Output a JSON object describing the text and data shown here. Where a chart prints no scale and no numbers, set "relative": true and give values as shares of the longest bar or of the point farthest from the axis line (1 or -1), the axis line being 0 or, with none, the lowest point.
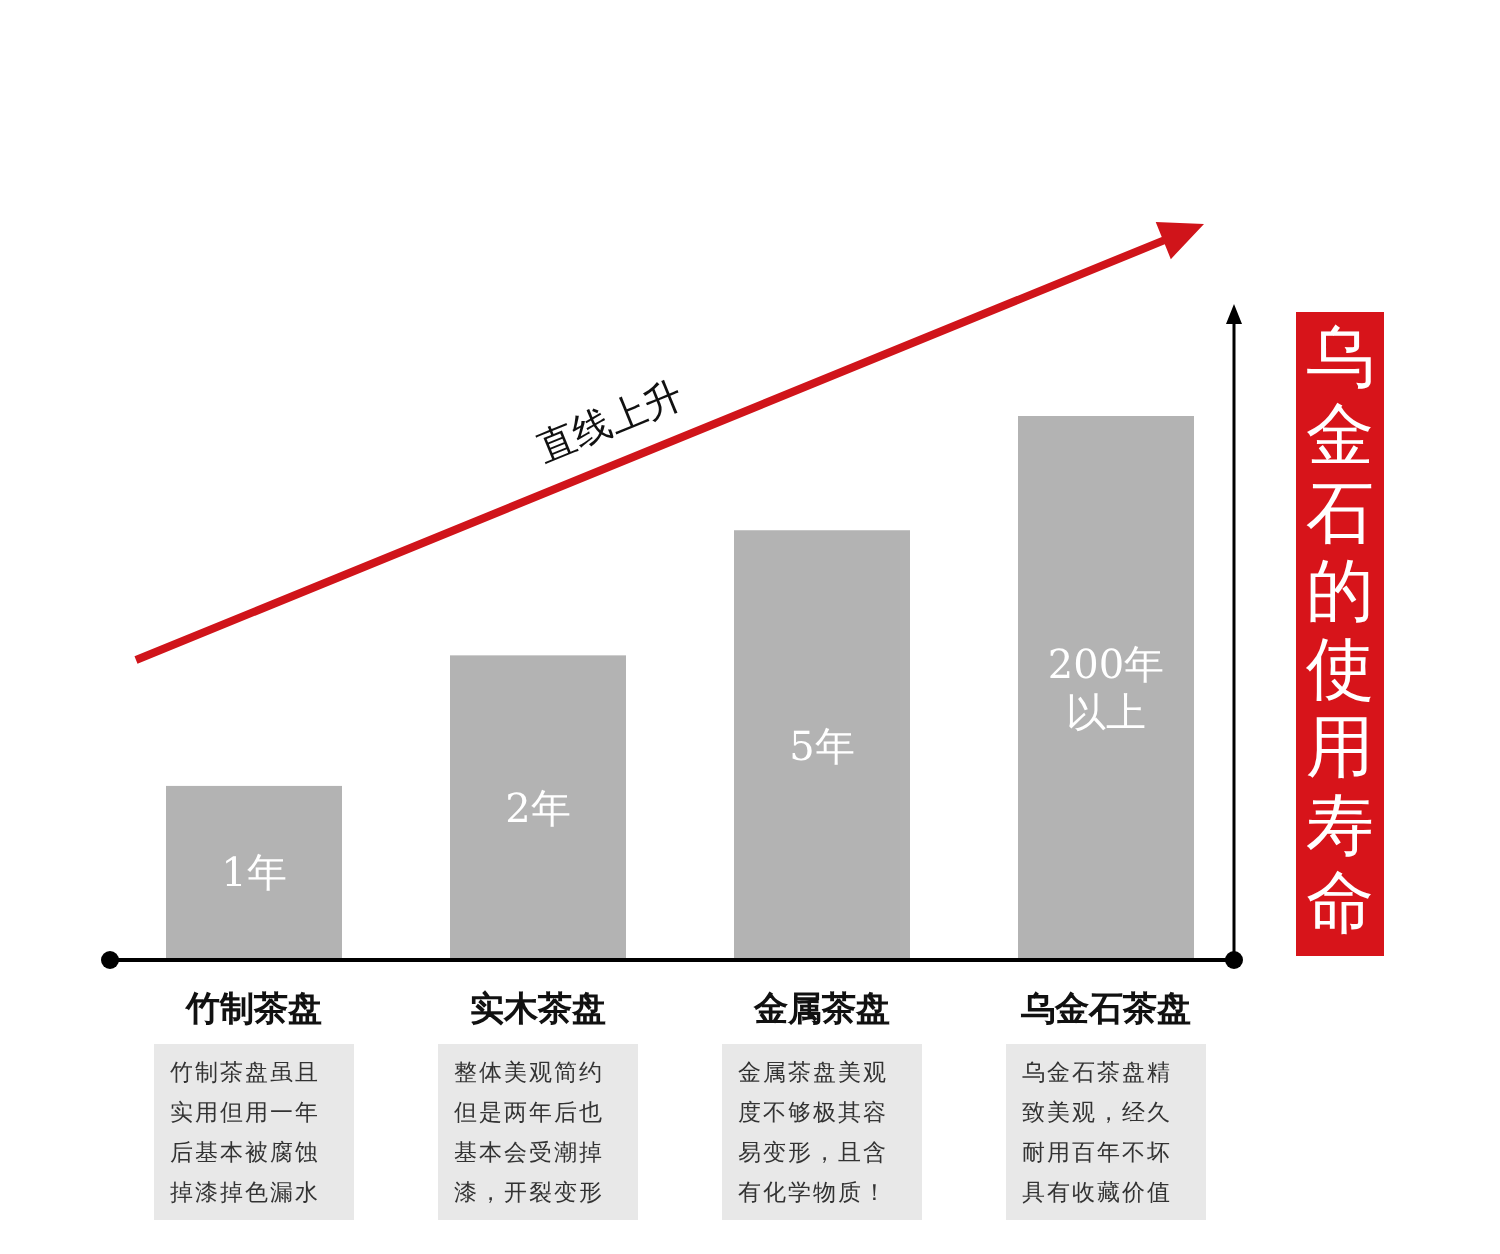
{
  "chart_data": {
    "type": "bar",
    "relative": true,
    "title": "乌金石的使用寿命",
    "categories": [
      "竹制茶盘",
      "实木茶盘",
      "金属茶盘",
      "乌金石茶盘"
    ],
    "values": [
      0.32,
      0.56,
      0.79,
      1
    ],
    "color": "#b3b3b3",
    "annotations": [
      "直线上升",
      "竹制茶盘虽且实用但用一年后基本被腐蚀掉漆掉色漏水",
      "整体美观简约但是两年后也基本会受潮掉漆，开裂变形",
      "金属茶盘美观度不够极其容易变形，且含有化学物质！",
      "乌金石茶盘精致美观，经久耐用百年不坏具有收藏价值",
      "1年",
      "2年",
      "5年",
      "200年以上"
    ]
  }
}
